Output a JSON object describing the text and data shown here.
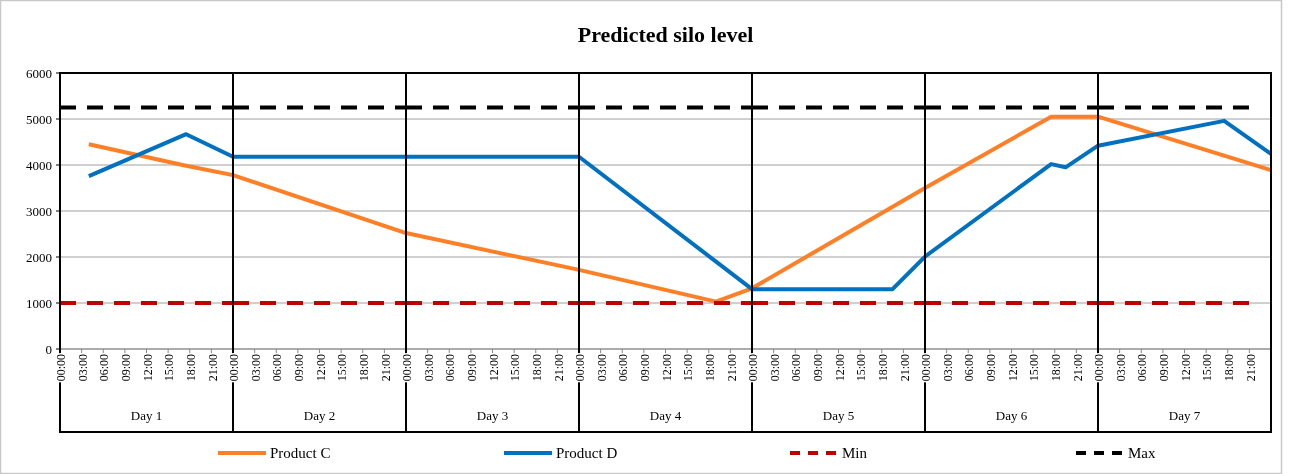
{
  "chart_data": [
    {
      "type": "line",
      "xlabel": "Day 1",
      "xlim": [
        0,
        24
      ],
      "xticks": [
        {
          "value": 0,
          "label": "00:00"
        },
        {
          "value": 3,
          "label": "03:00"
        },
        {
          "value": 6,
          "label": "06:00"
        },
        {
          "value": 9,
          "label": "09:00"
        },
        {
          "value": 12,
          "label": "12:00"
        },
        {
          "value": 15,
          "label": "15:00"
        },
        {
          "value": 18,
          "label": "18:00"
        },
        {
          "value": 21,
          "label": "21:00"
        }
      ],
      "ylim": [
        0,
        6000
      ],
      "yticks": [
        0,
        1000,
        2000,
        3000,
        4000,
        5000,
        6000
      ],
      "grid": "y",
      "legend": "bottom",
      "series": [
        {
          "name": "Product C",
          "color": "#ff7f27",
          "line_style": "solid",
          "x": [
            4,
            17,
            24
          ],
          "values": [
            4450,
            4000,
            3780
          ]
        },
        {
          "name": "Product D",
          "color": "#0070c0",
          "line_style": "solid",
          "x": [
            4,
            17.5,
            24
          ],
          "values": [
            3760,
            4670,
            4180
          ]
        },
        {
          "name": "Min",
          "color": "#c00000",
          "line_style": "dashed",
          "x": [
            0,
            24
          ],
          "values": [
            1000,
            1000
          ]
        },
        {
          "name": "Max",
          "color": "#000000",
          "line_style": "dashed",
          "x": [
            0,
            24
          ],
          "values": [
            5250,
            5250
          ]
        }
      ]
    },
    {
      "type": "line",
      "xlabel": "Day 2",
      "xlim": [
        0,
        24
      ],
      "xticks": [
        {
          "value": 0,
          "label": "00:00"
        },
        {
          "value": 3,
          "label": "03:00"
        },
        {
          "value": 6,
          "label": "06:00"
        },
        {
          "value": 9,
          "label": "09:00"
        },
        {
          "value": 12,
          "label": "12:00"
        },
        {
          "value": 15,
          "label": "15:00"
        },
        {
          "value": 18,
          "label": "18:00"
        },
        {
          "value": 21,
          "label": "21:00"
        }
      ],
      "ylim": [
        0,
        6000
      ],
      "yticks": [
        0,
        1000,
        2000,
        3000,
        4000,
        5000,
        6000
      ],
      "grid": "y",
      "tick_labels": "x",
      "series": [
        {
          "color": "#ff7f27",
          "line_style": "solid",
          "x": [
            0,
            24
          ],
          "values": [
            3780,
            2520
          ]
        },
        {
          "color": "#0070c0",
          "line_style": "solid",
          "x": [
            0,
            24
          ],
          "values": [
            4180,
            4180
          ]
        },
        {
          "color": "#c00000",
          "line_style": "dashed",
          "x": [
            0,
            24
          ],
          "values": [
            1000,
            1000
          ]
        },
        {
          "color": "#000000",
          "line_style": "dashed",
          "x": [
            0,
            24
          ],
          "values": [
            5250,
            5250
          ]
        }
      ]
    },
    {
      "type": "line",
      "xlabel": "Day 3",
      "xlim": [
        0,
        24
      ],
      "xticks": [
        {
          "value": 0,
          "label": "00:00"
        },
        {
          "value": 3,
          "label": "03:00"
        },
        {
          "value": 6,
          "label": "06:00"
        },
        {
          "value": 9,
          "label": "09:00"
        },
        {
          "value": 12,
          "label": "12:00"
        },
        {
          "value": 15,
          "label": "15:00"
        },
        {
          "value": 18,
          "label": "18:00"
        },
        {
          "value": 21,
          "label": "21:00"
        }
      ],
      "ylim": [
        0,
        6000
      ],
      "yticks": [
        0,
        1000,
        2000,
        3000,
        4000,
        5000,
        6000
      ],
      "grid": "y",
      "tick_labels": "x",
      "series": [
        {
          "color": "#ff7f27",
          "line_style": "solid",
          "x": [
            0,
            24
          ],
          "values": [
            2520,
            1720
          ]
        },
        {
          "color": "#0070c0",
          "line_style": "solid",
          "x": [
            0,
            24
          ],
          "values": [
            4180,
            4180
          ]
        },
        {
          "color": "#c00000",
          "line_style": "dashed",
          "x": [
            0,
            24
          ],
          "values": [
            1000,
            1000
          ]
        },
        {
          "color": "#000000",
          "line_style": "dashed",
          "x": [
            0,
            24
          ],
          "values": [
            5250,
            5250
          ]
        }
      ]
    },
    {
      "type": "line",
      "title": "Predicted silo level",
      "xlabel": "Day 4",
      "xlim": [
        0,
        24
      ],
      "xticks": [
        {
          "value": 0,
          "label": "00:00"
        },
        {
          "value": 3,
          "label": "03:00"
        },
        {
          "value": 6,
          "label": "06:00"
        },
        {
          "value": 9,
          "label": "09:00"
        },
        {
          "value": 12,
          "label": "12:00"
        },
        {
          "value": 15,
          "label": "15:00"
        },
        {
          "value": 18,
          "label": "18:00"
        },
        {
          "value": 21,
          "label": "21:00"
        }
      ],
      "ylim": [
        0,
        6000
      ],
      "yticks": [
        0,
        1000,
        2000,
        3000,
        4000,
        5000,
        6000
      ],
      "grid": "y",
      "tick_labels": "x",
      "series": [
        {
          "color": "#ff7f27",
          "line_style": "solid",
          "x": [
            0,
            19,
            24
          ],
          "values": [
            1720,
            1030,
            1320
          ]
        },
        {
          "color": "#0070c0",
          "line_style": "solid",
          "x": [
            0,
            24
          ],
          "values": [
            4180,
            1300
          ]
        },
        {
          "color": "#c00000",
          "line_style": "dashed",
          "x": [
            0,
            24
          ],
          "values": [
            1000,
            1000
          ]
        },
        {
          "color": "#000000",
          "line_style": "dashed",
          "x": [
            0,
            24
          ],
          "values": [
            5250,
            5250
          ]
        }
      ]
    },
    {
      "type": "line",
      "xlabel": "Day 5",
      "xlim": [
        0,
        24
      ],
      "xticks": [
        {
          "value": 0,
          "label": "00:00"
        },
        {
          "value": 3,
          "label": "03:00"
        },
        {
          "value": 6,
          "label": "06:00"
        },
        {
          "value": 9,
          "label": "09:00"
        },
        {
          "value": 12,
          "label": "12:00"
        },
        {
          "value": 15,
          "label": "15:00"
        },
        {
          "value": 18,
          "label": "18:00"
        },
        {
          "value": 21,
          "label": "21:00"
        }
      ],
      "ylim": [
        0,
        6000
      ],
      "yticks": [
        0,
        1000,
        2000,
        3000,
        4000,
        5000,
        6000
      ],
      "grid": "y",
      "tick_labels": "x",
      "series": [
        {
          "color": "#ff7f27",
          "line_style": "solid",
          "x": [
            0,
            24
          ],
          "values": [
            1320,
            3500
          ]
        },
        {
          "color": "#0070c0",
          "line_style": "solid",
          "x": [
            0,
            19.5,
            24
          ],
          "values": [
            1300,
            1300,
            2010
          ]
        },
        {
          "color": "#c00000",
          "line_style": "dashed",
          "x": [
            0,
            24
          ],
          "values": [
            1000,
            1000
          ]
        },
        {
          "color": "#000000",
          "line_style": "dashed",
          "x": [
            0,
            24
          ],
          "values": [
            5250,
            5250
          ]
        }
      ]
    },
    {
      "type": "line",
      "xlabel": "Day 6",
      "xlim": [
        0,
        24
      ],
      "xticks": [
        {
          "value": 0,
          "label": "00:00"
        },
        {
          "value": 3,
          "label": "03:00"
        },
        {
          "value": 6,
          "label": "06:00"
        },
        {
          "value": 9,
          "label": "09:00"
        },
        {
          "value": 12,
          "label": "12:00"
        },
        {
          "value": 15,
          "label": "15:00"
        },
        {
          "value": 18,
          "label": "18:00"
        },
        {
          "value": 21,
          "label": "21:00"
        }
      ],
      "ylim": [
        0,
        6000
      ],
      "yticks": [
        0,
        1000,
        2000,
        3000,
        4000,
        5000,
        6000
      ],
      "grid": "y",
      "tick_labels": "x",
      "series": [
        {
          "color": "#ff7f27",
          "line_style": "solid",
          "x": [
            0,
            17.5,
            24
          ],
          "values": [
            3500,
            5050,
            5050
          ]
        },
        {
          "color": "#0070c0",
          "line_style": "solid",
          "x": [
            0,
            17.5,
            19.5,
            24
          ],
          "values": [
            2010,
            4020,
            3950,
            4420
          ]
        },
        {
          "color": "#c00000",
          "line_style": "dashed",
          "x": [
            0,
            24
          ],
          "values": [
            1000,
            1000
          ]
        },
        {
          "color": "#000000",
          "line_style": "dashed",
          "x": [
            0,
            24
          ],
          "values": [
            5250,
            5250
          ]
        }
      ]
    },
    {
      "type": "line",
      "xlabel": "Day 7",
      "xlim": [
        0,
        24
      ],
      "xticks": [
        {
          "value": 0,
          "label": "00:00"
        },
        {
          "value": 3,
          "label": "03:00"
        },
        {
          "value": 6,
          "label": "06:00"
        },
        {
          "value": 9,
          "label": "09:00"
        },
        {
          "value": 12,
          "label": "12:00"
        },
        {
          "value": 15,
          "label": "15:00"
        },
        {
          "value": 18,
          "label": "18:00"
        },
        {
          "value": 21,
          "label": "21:00"
        }
      ],
      "ylim": [
        0,
        6000
      ],
      "yticks": [
        0,
        1000,
        2000,
        3000,
        4000,
        5000,
        6000
      ],
      "grid": "y",
      "tick_labels": "x",
      "series": [
        {
          "color": "#ff7f27",
          "line_style": "solid",
          "x": [
            0,
            24
          ],
          "values": [
            5050,
            3890
          ]
        },
        {
          "color": "#0070c0",
          "line_style": "solid",
          "x": [
            0,
            17.5,
            24
          ],
          "values": [
            4420,
            4960,
            4240
          ]
        },
        {
          "color": "#c00000",
          "line_style": "dashed",
          "x": [
            0,
            21.5
          ],
          "values": [
            1000,
            1000
          ]
        },
        {
          "color": "#000000",
          "line_style": "dashed",
          "x": [
            0,
            21.5
          ],
          "values": [
            5250,
            5250
          ]
        }
      ]
    }
  ]
}
